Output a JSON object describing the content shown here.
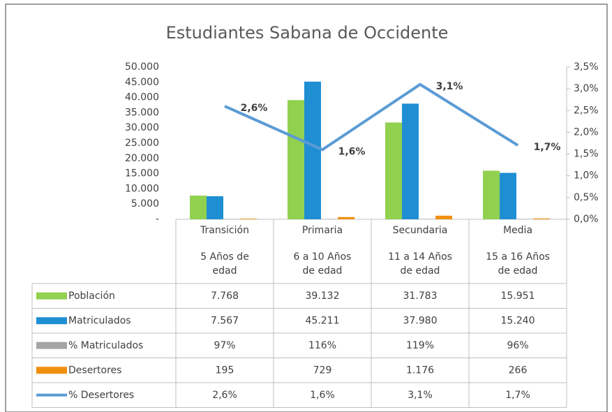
{
  "chart_data": {
    "type": "bar",
    "title": "Estudiantes Sabana de Occidente",
    "categories": [
      "Transición",
      "Primaria",
      "Secundaria",
      "Media"
    ],
    "subcategories": [
      [
        "5 Años de",
        "edad"
      ],
      [
        "6 a 10 Años",
        "de edad"
      ],
      [
        "11 a 14 Años",
        "de edad"
      ],
      [
        "15 a 16 Años",
        "de edad"
      ]
    ],
    "series": [
      {
        "name": "Población",
        "type": "bar",
        "color": "#92d050",
        "values": [
          7768,
          39132,
          31783,
          15951
        ],
        "value_labels": [
          "7.768",
          "39.132",
          "31.783",
          "15.951"
        ]
      },
      {
        "name": "Matriculados",
        "type": "bar",
        "color": "#1f8fd3",
        "values": [
          7567,
          45211,
          37980,
          15240
        ],
        "value_labels": [
          "7.567",
          "45.211",
          "37.980",
          "15.240"
        ]
      },
      {
        "name": "% Matriculados",
        "type": "bar",
        "color": "#a5a5a5",
        "values": [
          97,
          116,
          119,
          96
        ],
        "value_labels": [
          "97%",
          "116%",
          "119%",
          "96%"
        ]
      },
      {
        "name": "Desertores",
        "type": "bar",
        "color": "#f0900f",
        "values": [
          195,
          729,
          1176,
          266
        ],
        "value_labels": [
          "195",
          "729",
          "1.176",
          "266"
        ]
      },
      {
        "name": "% Desertores",
        "type": "line",
        "axis": "y2",
        "color": "#5b9bd5",
        "values": [
          2.6,
          1.6,
          3.1,
          1.7
        ],
        "value_labels": [
          "2,6%",
          "1,6%",
          "3,1%",
          "1,7%"
        ]
      }
    ],
    "ylim": [
      0,
      50000
    ],
    "yticks": [
      {
        "value": 0,
        "label": "-"
      },
      {
        "value": 5000,
        "label": "5.000"
      },
      {
        "value": 10000,
        "label": "10.000"
      },
      {
        "value": 15000,
        "label": "15.000"
      },
      {
        "value": 20000,
        "label": "20.000"
      },
      {
        "value": 25000,
        "label": "25.000"
      },
      {
        "value": 30000,
        "label": "30.000"
      },
      {
        "value": 35000,
        "label": "35.000"
      },
      {
        "value": 40000,
        "label": "40.000"
      },
      {
        "value": 45000,
        "label": "45.000"
      },
      {
        "value": 50000,
        "label": "50.000"
      }
    ],
    "y2lim": [
      0,
      3.5
    ],
    "y2ticks": [
      {
        "value": 0,
        "label": "0,0%"
      },
      {
        "value": 0.5,
        "label": "0,5%"
      },
      {
        "value": 1,
        "label": "1,0%"
      },
      {
        "value": 1.5,
        "label": "1,5%"
      },
      {
        "value": 2,
        "label": "2,0%"
      },
      {
        "value": 2.5,
        "label": "2,5%"
      },
      {
        "value": 3,
        "label": "3,0%"
      },
      {
        "value": 3.5,
        "label": "3,5%"
      }
    ],
    "grid": false
  }
}
